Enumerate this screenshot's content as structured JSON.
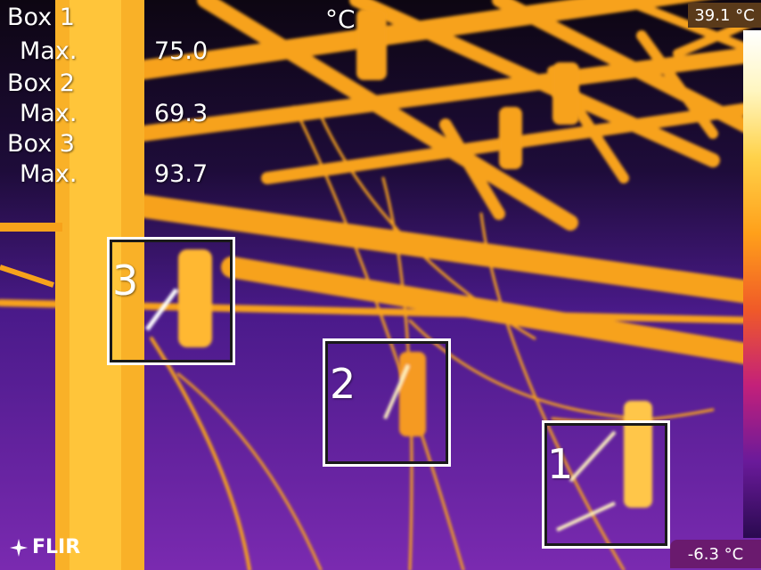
{
  "measurements": [
    {
      "label": "Box 1",
      "stat": "Max.",
      "value": "75.0"
    },
    {
      "label": "Box 2",
      "stat": "Max.",
      "value": "69.3"
    },
    {
      "label": "Box 3",
      "stat": "Max.",
      "value": "93.7"
    }
  ],
  "unit": "°C",
  "scale": {
    "max": "39.1 °C",
    "min": "-6.3 °C"
  },
  "boxes": [
    {
      "number": "1"
    },
    {
      "number": "2"
    },
    {
      "number": "3"
    }
  ],
  "brand": "FLIR",
  "colors": {
    "hot": "#ffffff",
    "warm": "#ffa01a",
    "mid": "#c3207a",
    "cold": "#2a0a50"
  }
}
